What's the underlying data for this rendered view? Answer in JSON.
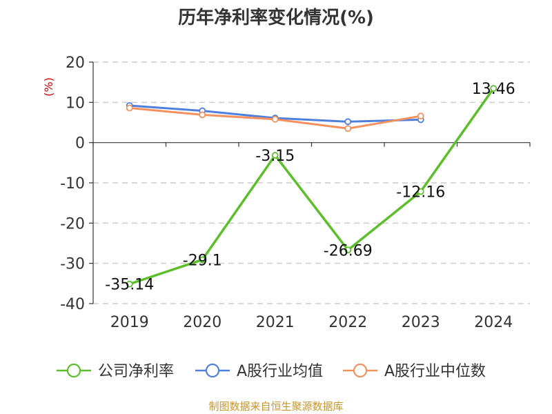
{
  "colors": {
    "net_margin": "#5cbf2a",
    "industry_avg": "#4f7fdc",
    "industry_median": "#f4915e",
    "grid": "#cccccc",
    "unit": "#cc0000",
    "source": "#c8962e"
  },
  "source_text": "制图数据来自恒生聚源数据库",
  "chart_data": {
    "type": "line",
    "title": "历年净利率变化情况(%)",
    "unit_label": "(%)",
    "xlabel": "",
    "ylabel": "",
    "categories": [
      "2019",
      "2020",
      "2021",
      "2022",
      "2023",
      "2024"
    ],
    "ylim": [
      -40,
      20
    ],
    "yticks": [
      "20",
      "10",
      "0",
      "-10",
      "-20",
      "-30",
      "-40"
    ],
    "grid": true,
    "legend_position": "bottom",
    "series": [
      {
        "name": "公司净利率",
        "color_key": "net_margin",
        "values": [
          -35.14,
          -29.1,
          -3.15,
          -26.69,
          -12.16,
          13.46
        ],
        "labels": [
          "-35.14",
          "-29.1",
          "-3.15",
          "-26.69",
          "-12.16",
          "13.46"
        ]
      },
      {
        "name": "A股行业均值",
        "color_key": "industry_avg",
        "values": [
          9.2,
          7.9,
          6.1,
          5.2,
          5.7,
          null
        ]
      },
      {
        "name": "A股行业中位数",
        "color_key": "industry_median",
        "values": [
          8.6,
          6.9,
          5.8,
          3.5,
          6.6,
          null
        ]
      }
    ]
  }
}
